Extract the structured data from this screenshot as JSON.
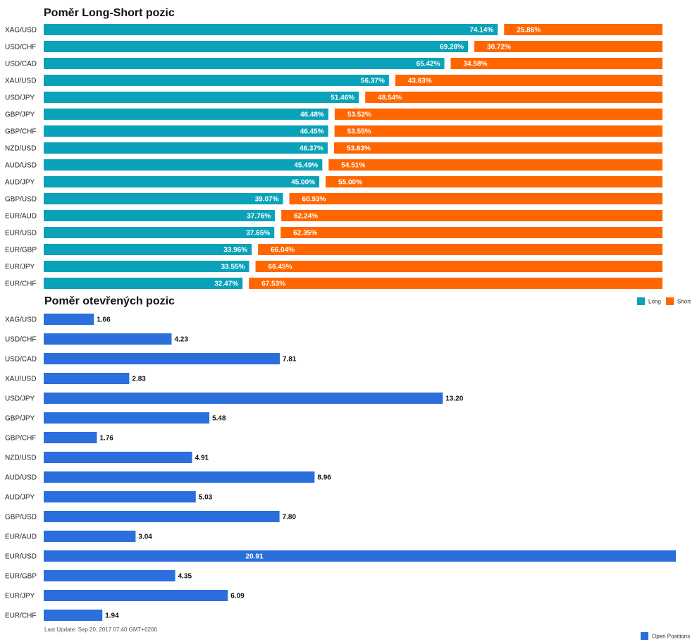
{
  "chart_data": [
    {
      "type": "bar",
      "orientation": "horizontal",
      "stacked": true,
      "title": "Poměr Long-Short pozic",
      "categories": [
        "XAG/USD",
        "USD/CHF",
        "USD/CAD",
        "XAU/USD",
        "USD/JPY",
        "GBP/JPY",
        "GBP/CHF",
        "NZD/USD",
        "AUD/USD",
        "AUD/JPY",
        "GBP/USD",
        "EUR/AUD",
        "EUR/USD",
        "EUR/GBP",
        "EUR/JPY",
        "EUR/CHF"
      ],
      "series": [
        {
          "name": "Long",
          "color": "#0aa2b8",
          "values": [
            74.14,
            69.28,
            65.42,
            56.37,
            51.46,
            46.48,
            46.45,
            46.37,
            45.49,
            45.0,
            39.07,
            37.76,
            37.65,
            33.96,
            33.55,
            32.47
          ],
          "labels": [
            "74.14%",
            "69.28%",
            "65.42%",
            "56.37%",
            "51.46%",
            "46.48%",
            "46.45%",
            "46.37%",
            "45.49%",
            "45.00%",
            "39.07%",
            "37.76%",
            "37.65%",
            "33.96%",
            "33.55%",
            "32.47%"
          ]
        },
        {
          "name": "Short",
          "color": "#ff6600",
          "values": [
            25.86,
            30.72,
            34.58,
            43.63,
            48.54,
            53.52,
            53.55,
            53.63,
            54.51,
            55.0,
            60.93,
            62.24,
            62.35,
            66.04,
            66.45,
            67.53
          ],
          "labels": [
            "25.86%",
            "30.72%",
            "34.58%",
            "43.63%",
            "48.54%",
            "53.52%",
            "53.55%",
            "53.63%",
            "54.51%",
            "55.00%",
            "60.93%",
            "62.24%",
            "62.35%",
            "66.04%",
            "66.45%",
            "67.53%"
          ]
        }
      ],
      "xlim": [
        0,
        100
      ],
      "legend": "top-right"
    },
    {
      "type": "bar",
      "orientation": "horizontal",
      "title": "Poměr otevřených pozic",
      "categories": [
        "XAG/USD",
        "USD/CHF",
        "USD/CAD",
        "XAU/USD",
        "USD/JPY",
        "GBP/JPY",
        "GBP/CHF",
        "NZD/USD",
        "AUD/USD",
        "AUD/JPY",
        "GBP/USD",
        "EUR/AUD",
        "EUR/USD",
        "EUR/GBP",
        "EUR/JPY",
        "EUR/CHF"
      ],
      "series": [
        {
          "name": "Open Positions",
          "color": "#2a6fdb",
          "values": [
            1.66,
            4.23,
            7.81,
            2.83,
            13.2,
            5.48,
            1.76,
            4.91,
            8.96,
            5.03,
            7.8,
            3.04,
            20.91,
            4.35,
            6.09,
            1.94
          ],
          "labels": [
            "1.66",
            "4.23",
            "7.81",
            "2.83",
            "13.20",
            "5.48",
            "1.76",
            "4.91",
            "8.96",
            "5.03",
            "7.80",
            "3.04",
            "20.91",
            "4.35",
            "6.09",
            "1.94"
          ]
        }
      ],
      "xlim": [
        0,
        20.91
      ],
      "legend": "bottom-right"
    }
  ],
  "footer": {
    "last_update": "Last Update: Sep 20, 2017 07:40 GMT+0200"
  }
}
